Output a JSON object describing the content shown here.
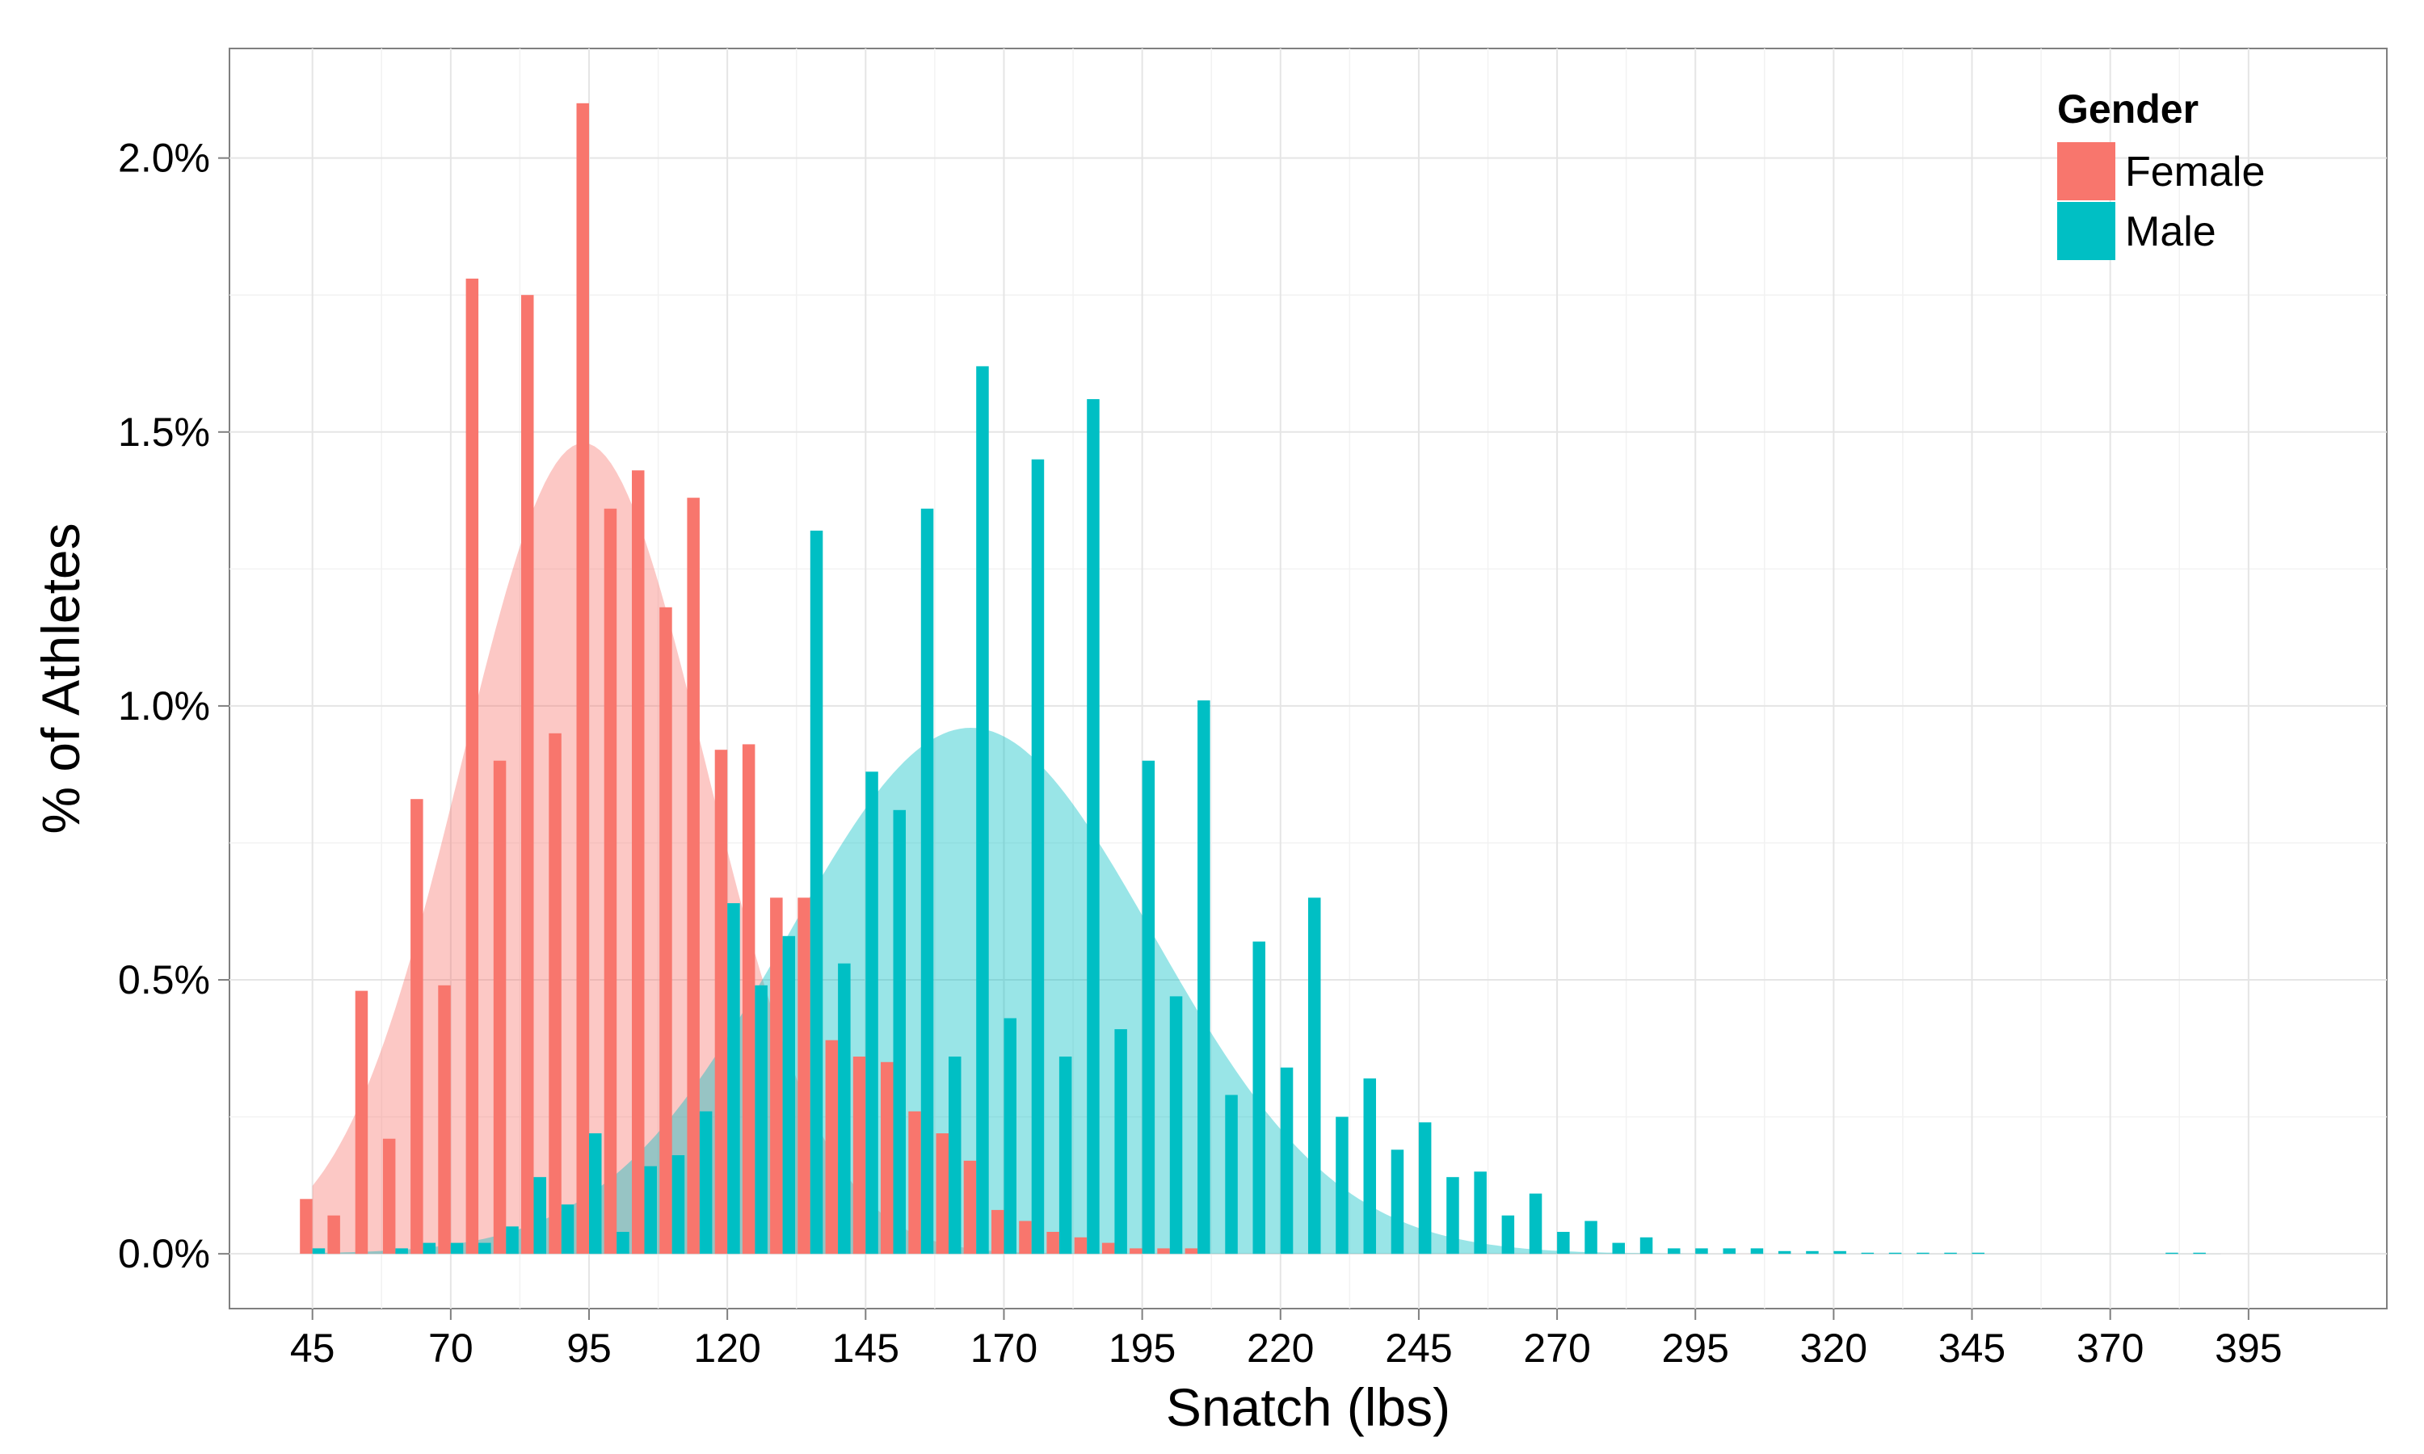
{
  "chart_data": {
    "type": "bar",
    "title": "",
    "xlabel": "Snatch (lbs)",
    "ylabel": "% of Athletes",
    "xlim": [
      30,
      420
    ],
    "ylim": [
      -0.1,
      2.2
    ],
    "x_ticks": [
      45,
      70,
      95,
      120,
      145,
      170,
      195,
      220,
      245,
      270,
      295,
      320,
      345,
      370,
      395
    ],
    "x_tick_labels": [
      "45",
      "70",
      "95",
      "120",
      "145",
      "170",
      "195",
      "220",
      "245",
      "270",
      "295",
      "320",
      "345",
      "370",
      "395"
    ],
    "y_ticks": [
      0,
      0.5,
      1.0,
      1.5,
      2.0
    ],
    "y_tick_labels": [
      "0.0%",
      "0.5%",
      "1.0%",
      "1.5%",
      "2.0%"
    ],
    "grid": true,
    "legend": {
      "title": "Gender",
      "position": "top-right"
    },
    "colors": {
      "Female": "#F8766D",
      "Male": "#00BFC4"
    },
    "x": [
      45,
      50,
      55,
      60,
      65,
      70,
      75,
      80,
      85,
      90,
      95,
      100,
      105,
      110,
      115,
      120,
      125,
      130,
      135,
      140,
      145,
      150,
      155,
      160,
      165,
      170,
      175,
      180,
      185,
      190,
      195,
      200,
      205,
      210,
      215,
      220,
      225,
      230,
      235,
      240,
      245,
      250,
      255,
      260,
      265,
      270,
      275,
      280,
      285,
      290,
      295,
      300,
      305,
      310,
      315,
      320,
      325,
      330,
      335,
      340,
      345,
      350,
      355,
      360,
      365,
      370,
      375,
      380,
      385,
      390
    ],
    "series": [
      {
        "name": "Female",
        "values": [
          0.1,
          0.07,
          0.48,
          0.21,
          0.83,
          0.49,
          1.78,
          0.9,
          1.75,
          0.95,
          2.1,
          1.36,
          1.43,
          1.18,
          1.38,
          0.92,
          0.93,
          0.65,
          0.65,
          0.39,
          0.36,
          0.35,
          0.26,
          0.22,
          0.17,
          0.08,
          0.06,
          0.04,
          0.03,
          0.02,
          0.01,
          0.01,
          0.01,
          0.0,
          0.0,
          0.0,
          0.0,
          0.0,
          0.0,
          0.0,
          0.0,
          0.0,
          0.0,
          0.0,
          0.0,
          0.0,
          0.0,
          0.0,
          0.0,
          0.0,
          0.0,
          0.0,
          0.0,
          0.0,
          0.0,
          0.0,
          0.0,
          0.0,
          0.0,
          0.0,
          0.0,
          0.0,
          0.0,
          0.0,
          0.0,
          0.0,
          0.0,
          0.0,
          0.0,
          0.0
        ],
        "density_peak_x": 94,
        "density_peak": 1.48
      },
      {
        "name": "Male",
        "values": [
          0.01,
          0.0,
          0.0,
          0.01,
          0.02,
          0.02,
          0.02,
          0.05,
          0.14,
          0.09,
          0.22,
          0.04,
          0.16,
          0.18,
          0.26,
          0.64,
          0.49,
          0.58,
          1.32,
          0.53,
          0.88,
          0.81,
          1.36,
          0.36,
          1.62,
          0.43,
          1.45,
          0.36,
          1.56,
          0.41,
          0.9,
          0.47,
          1.01,
          0.29,
          0.57,
          0.34,
          0.65,
          0.25,
          0.32,
          0.19,
          0.24,
          0.14,
          0.15,
          0.07,
          0.11,
          0.04,
          0.06,
          0.02,
          0.03,
          0.01,
          0.01,
          0.01,
          0.01,
          0.005,
          0.005,
          0.005,
          0.002,
          0.002,
          0.002,
          0.002,
          0.002,
          0.0,
          0.0,
          0.0,
          0.0,
          0.0,
          0.0,
          0.002,
          0.002,
          0.0
        ],
        "density_peak_x": 164,
        "density_peak": 0.96
      }
    ]
  }
}
